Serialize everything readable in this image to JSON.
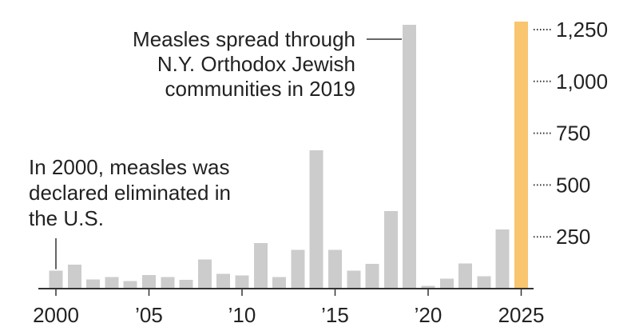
{
  "chart_data": {
    "type": "bar",
    "x": [
      2000,
      2001,
      2002,
      2003,
      2004,
      2005,
      2006,
      2007,
      2008,
      2009,
      2010,
      2011,
      2012,
      2013,
      2014,
      2015,
      2016,
      2017,
      2018,
      2019,
      2020,
      2021,
      2022,
      2023,
      2024,
      2025
    ],
    "values": [
      86,
      116,
      44,
      56,
      37,
      66,
      55,
      43,
      140,
      71,
      63,
      220,
      55,
      187,
      667,
      188,
      86,
      120,
      375,
      1274,
      13,
      49,
      121,
      59,
      285,
      1288
    ],
    "highlight_index": 25,
    "colors": {
      "bar": "#cccccc",
      "highlight": "#f9c56f",
      "text": "#222222"
    },
    "x_tick_labels": [
      {
        "x": 2000,
        "label": "2000"
      },
      {
        "x": 2005,
        "label": "’05"
      },
      {
        "x": 2010,
        "label": "’10"
      },
      {
        "x": 2015,
        "label": "’15"
      },
      {
        "x": 2020,
        "label": "’20"
      },
      {
        "x": 2025,
        "label": "2025"
      }
    ],
    "y_ticks": [
      {
        "value": 250,
        "label": "250"
      },
      {
        "value": 500,
        "label": "500"
      },
      {
        "value": 750,
        "label": "750"
      },
      {
        "value": 1000,
        "label": "1,000"
      },
      {
        "value": 1250,
        "label": "1,250"
      }
    ],
    "ylim": [
      0,
      1300
    ],
    "y_axis_side": "right",
    "grid": false,
    "annotations": [
      {
        "target_x": 2000,
        "lines": [
          "In 2000, measles was",
          "declared eliminated in",
          "the U.S."
        ]
      },
      {
        "target_x": 2019,
        "lines": [
          "Measles spread through",
          "N.Y. Orthodox Jewish",
          "communities in 2019"
        ]
      }
    ]
  }
}
